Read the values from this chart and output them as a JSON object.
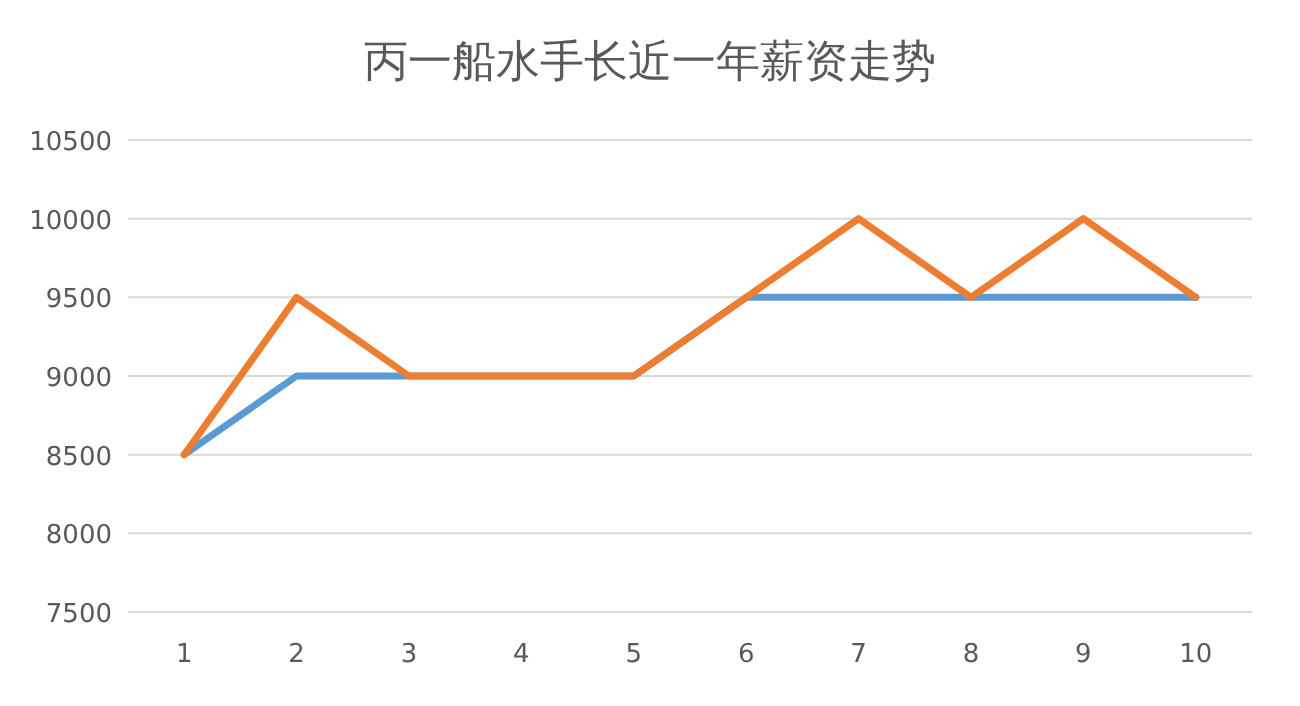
{
  "chart_data": {
    "type": "line",
    "title": "丙一船水手长近一年薪资走势",
    "categories": [
      "1",
      "2",
      "3",
      "4",
      "5",
      "6",
      "7",
      "8",
      "9",
      "10"
    ],
    "series": [
      {
        "color": "#5b9bd5",
        "values": [
          8500,
          9000,
          9000,
          9000,
          9000,
          9500,
          9500,
          9500,
          9500,
          9500
        ]
      },
      {
        "color": "#ed7d31",
        "values": [
          8500,
          9500,
          9000,
          9000,
          9000,
          9500,
          10000,
          9500,
          10000,
          9500
        ]
      }
    ],
    "ylim": [
      7500,
      10500
    ],
    "yticks": [
      7500,
      8000,
      8500,
      9000,
      9500,
      10000,
      10500
    ],
    "grid": "y",
    "marker": "none",
    "line_style": "solid"
  }
}
